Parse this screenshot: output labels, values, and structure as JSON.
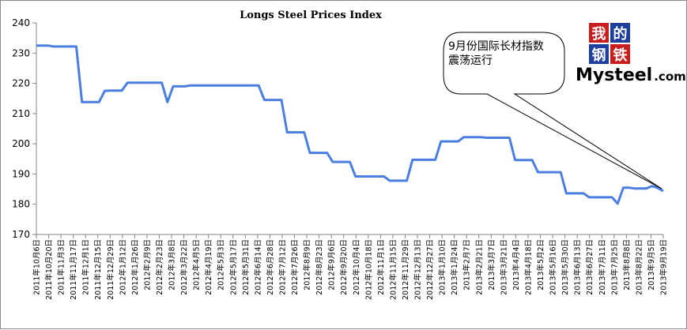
{
  "chart_data": {
    "type": "line",
    "title": "Longs Steel Prices Index",
    "xlabel": "",
    "ylabel": "",
    "ylim": [
      170,
      240
    ],
    "yticks": [
      170,
      180,
      190,
      200,
      210,
      220,
      230,
      240
    ],
    "grid": false,
    "line_color": "#4a7fe0",
    "x_labels": [
      "2011年10月6日",
      "2011年10月20日",
      "2011年11月3日",
      "2011年11月17日",
      "2011年12月1日",
      "2011年12月15日",
      "2011年12月29日",
      "2012年1月12日",
      "2012年1月26日",
      "2012年2月9日",
      "2012年2月23日",
      "2012年3月8日",
      "2012年3月22日",
      "2012年4月5日",
      "2012年4月19日",
      "2012年5月3日",
      "2012年5月17日",
      "2012年5月31日",
      "2012年6月14日",
      "2012年6月28日",
      "2012年7月12日",
      "2012年7月26日",
      "2012年8月9日",
      "2012年8月23日",
      "2012年9月6日",
      "2012年9月20日",
      "2012年10月4日",
      "2012年10月18日",
      "2012年11月1日",
      "2012年11月15日",
      "2012年11月29日",
      "2012年12月13日",
      "2012年12月27日",
      "2013年1月10日",
      "2013年1月24日",
      "2013年2月7日",
      "2013年2月21日",
      "2013年3月7日",
      "2013年3月21日",
      "2013年4月4日",
      "2013年4月18日",
      "2013年5月2日",
      "2013年5月16日",
      "2013年5月30日",
      "2013年6月13日",
      "2013年6月27日",
      "2013年7月11日",
      "2013年7月25日",
      "2013年8月8日",
      "2013年8月22日",
      "2013年9月5日",
      "2013年9月19日"
    ],
    "series": [
      {
        "values": [
          232.5,
          232.5,
          232.5,
          232.2,
          232.2,
          232.2,
          232.2,
          232.2,
          213.8,
          213.8,
          213.8,
          213.8,
          217.5,
          217.6,
          217.6,
          217.6,
          220.2,
          220.2,
          220.2,
          220.2,
          220.2,
          220.2,
          220.2,
          213.8,
          219.0,
          219.0,
          219.0,
          219.3,
          219.3,
          219.3,
          219.3,
          219.3,
          219.3,
          219.3,
          219.3,
          219.3,
          219.3,
          219.3,
          219.3,
          219.3,
          214.5,
          214.5,
          214.5,
          214.5,
          203.8,
          203.8,
          203.8,
          203.8,
          197.0,
          197.0,
          197.0,
          197.0,
          194.0,
          194.0,
          194.0,
          194.0,
          189.2,
          189.2,
          189.2,
          189.2,
          189.2,
          189.2,
          187.8,
          187.8,
          187.8,
          187.8,
          194.7,
          194.7,
          194.7,
          194.7,
          194.7,
          200.8,
          200.8,
          200.8,
          200.8,
          202.2,
          202.2,
          202.2,
          202.2,
          202.0,
          202.0,
          202.0,
          202.0,
          202.0,
          194.6,
          194.6,
          194.6,
          194.6,
          190.6,
          190.6,
          190.6,
          190.6,
          190.6,
          183.6,
          183.6,
          183.6,
          183.6,
          182.3,
          182.3,
          182.3,
          182.3,
          182.3,
          180.2,
          185.5,
          185.5,
          185.2,
          185.2,
          185.2,
          186.0,
          185.4,
          184.4
        ]
      }
    ],
    "annotation": {
      "text_line1": "9月份国际长材指数",
      "text_line2": "震荡运行"
    }
  },
  "logo": {
    "cn_chars": [
      "我",
      "的",
      "钢",
      "铁"
    ],
    "cn_colors": [
      "#c81e1e",
      "#1f3f9e",
      "#1f3f9e",
      "#c81e1e"
    ],
    "en_main": "Mysteel",
    "en_suffix": ".com"
  }
}
